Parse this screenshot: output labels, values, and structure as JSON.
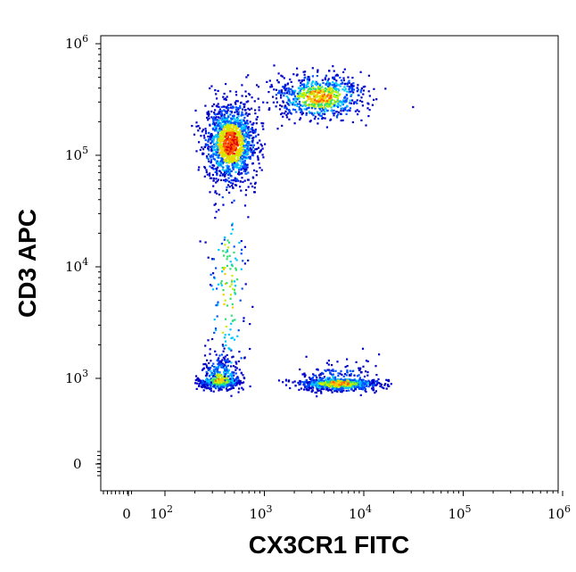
{
  "chart_data": {
    "type": "scatter",
    "subtype": "flow-cytometry-density-dot-plot",
    "xlabel": "CX3CR1 FITC",
    "ylabel": "CD3 APC",
    "x_scale": "biexponential",
    "y_scale": "biexponential",
    "xlim": [
      -300,
      1000000
    ],
    "ylim": [
      -300,
      1000000
    ],
    "x_ticks": [
      {
        "value": 0,
        "base": "0",
        "exp": ""
      },
      {
        "value": 100,
        "base": "10",
        "exp": "2"
      },
      {
        "value": 1000,
        "base": "10",
        "exp": "3"
      },
      {
        "value": 10000,
        "base": "10",
        "exp": "4"
      },
      {
        "value": 100000,
        "base": "10",
        "exp": "5"
      },
      {
        "value": 1000000,
        "base": "10",
        "exp": "6"
      }
    ],
    "y_ticks": [
      {
        "value": 0,
        "base": "0",
        "exp": ""
      },
      {
        "value": 1000,
        "base": "10",
        "exp": "3"
      },
      {
        "value": 10000,
        "base": "10",
        "exp": "4"
      },
      {
        "value": 100000,
        "base": "10",
        "exp": "5"
      },
      {
        "value": 1000000,
        "base": "10",
        "exp": "6"
      }
    ],
    "grid": false,
    "legend": "none",
    "density_colors": [
      "#0000c8",
      "#0050ff",
      "#00c8ff",
      "#30e070",
      "#c8f000",
      "#ffc800",
      "#ff6000",
      "#e00000"
    ],
    "populations": [
      {
        "x_center": 450,
        "y_center": 130000,
        "x_spread_decades": 0.13,
        "y_spread_decades": 0.18,
        "relative_density": 1.0
      },
      {
        "x_center": 3500,
        "y_center": 340000,
        "x_spread_decades": 0.22,
        "y_spread_decades": 0.1,
        "relative_density": 0.55
      },
      {
        "x_center": 350,
        "y_center": 850,
        "x_spread_decades": 0.1,
        "y_spread_decades": 0.13,
        "relative_density": 0.45
      },
      {
        "x_center": 5500,
        "y_center": 700,
        "x_spread_decades": 0.2,
        "y_spread_decades": 0.13,
        "relative_density": 0.6
      },
      {
        "x_center": 420,
        "y_center": 6000,
        "x_spread_decades": 0.1,
        "y_spread_decades": 0.5,
        "relative_density": 0.12
      }
    ]
  }
}
